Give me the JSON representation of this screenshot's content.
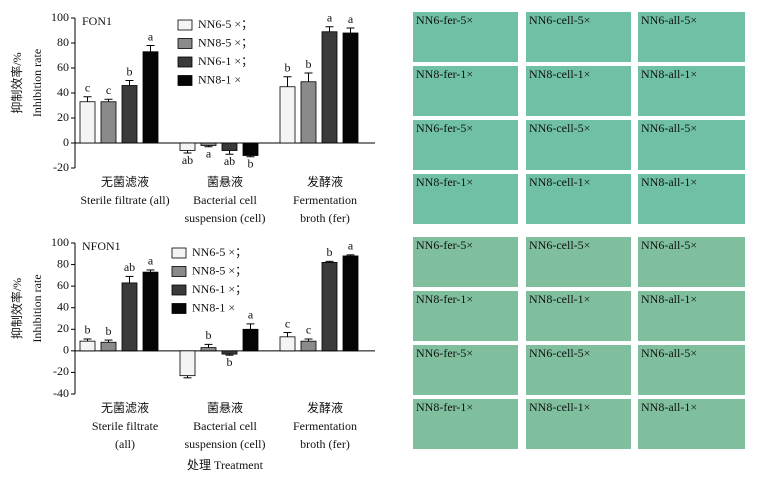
{
  "chart_data": [
    {
      "type": "bar",
      "title": "FON1",
      "ylabel": [
        "抑制效率/%",
        "Inhibition rate"
      ],
      "categories": [
        [
          "无菌滤液",
          "Sterile filtrate (all)"
        ],
        [
          "菌悬液",
          "Bacterial cell",
          "suspension (cell)"
        ],
        [
          "发酵液",
          "Fermentation",
          "broth (fer)"
        ]
      ],
      "ylim": [
        -20,
        100
      ],
      "yticks": [
        -20,
        0,
        20,
        40,
        60,
        80,
        100
      ],
      "series": [
        {
          "name": "NN6-5 ×；",
          "color": "#f4f4f4",
          "values": [
            33,
            -6,
            45
          ],
          "errors": [
            4,
            2,
            8
          ],
          "letters": [
            "c",
            "ab",
            "b"
          ]
        },
        {
          "name": "NN8-5 ×；",
          "color": "#8a8a8a",
          "values": [
            33,
            -2,
            49
          ],
          "errors": [
            2,
            1,
            7
          ],
          "letters": [
            "c",
            "a",
            "b"
          ]
        },
        {
          "name": "NN6-1 ×；",
          "color": "#3a3a3a",
          "values": [
            46,
            -6,
            89
          ],
          "errors": [
            4,
            3,
            4
          ],
          "letters": [
            "b",
            "ab",
            "a"
          ]
        },
        {
          "name": "NN8-1 ×",
          "color": "#050505",
          "values": [
            73,
            -10,
            88
          ],
          "errors": [
            5,
            1,
            4
          ],
          "letters": [
            "a",
            "b",
            "a"
          ]
        }
      ]
    },
    {
      "type": "bar",
      "title": "NFON1",
      "ylabel": [
        "抑制效率/%",
        "Inhibition rate"
      ],
      "xlabel": "处理 Treatment",
      "categories": [
        [
          "无菌滤液",
          "Sterile filtrate",
          "(all)"
        ],
        [
          "菌悬液",
          "Bacterial cell",
          "suspension (cell)"
        ],
        [
          "发酵液",
          "Fermentation",
          "broth (fer)"
        ]
      ],
      "ylim": [
        -40,
        100
      ],
      "yticks": [
        -40,
        -20,
        0,
        20,
        40,
        60,
        80,
        100
      ],
      "series": [
        {
          "name": "NN6-5 ×；",
          "color": "#f4f4f4",
          "values": [
            9,
            -23,
            13
          ],
          "errors": [
            2,
            2,
            4
          ],
          "letters": [
            "b",
            null,
            "c"
          ]
        },
        {
          "name": "NN8-5 ×；",
          "color": "#8a8a8a",
          "values": [
            8,
            3,
            9
          ],
          "errors": [
            2,
            3,
            2
          ],
          "letters": [
            "b",
            "b",
            "c"
          ]
        },
        {
          "name": "NN6-1 ×；",
          "color": "#3a3a3a",
          "values": [
            63,
            -3,
            82
          ],
          "errors": [
            6,
            1,
            1
          ],
          "letters": [
            "ab",
            "b",
            "b"
          ]
        },
        {
          "name": "NN8-1 ×",
          "color": "#050505",
          "values": [
            73,
            20,
            88
          ],
          "errors": [
            2,
            5,
            1
          ],
          "letters": [
            "a",
            "a",
            "a"
          ]
        }
      ]
    }
  ],
  "image_panels": [
    [
      [
        "NN6-fer-5×",
        "NN6-cell-5×",
        "NN6-all-5×"
      ],
      [
        "NN8-fer-1×",
        "NN8-cell-1×",
        "NN8-all-1×"
      ],
      [
        "NN6-fer-5×",
        "NN6-cell-5×",
        "NN6-all-5×"
      ],
      [
        "NN8-fer-1×",
        "NN8-cell-1×",
        "NN8-all-1×"
      ]
    ],
    [
      [
        "NN6-fer-5×",
        "NN6-cell-5×",
        "NN6-all-5×"
      ],
      [
        "NN8-fer-1×",
        "NN8-cell-1×",
        "NN8-all-1×"
      ],
      [
        "NN6-fer-5×",
        "NN6-cell-5×",
        "NN6-all-5×"
      ],
      [
        "NN8-fer-1×",
        "NN8-cell-1×",
        "NN8-all-1×"
      ]
    ]
  ]
}
